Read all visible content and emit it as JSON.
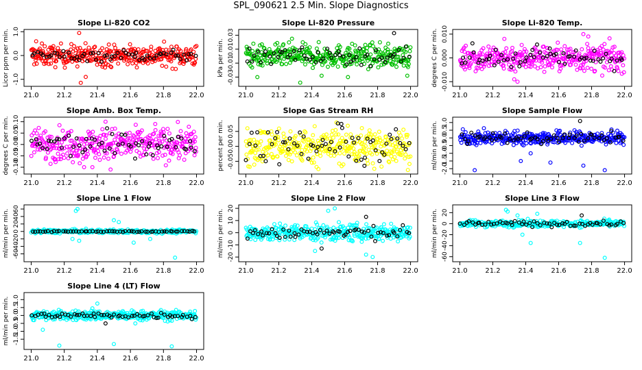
{
  "title": "SPL_090621  2.5 Min. Slope Diagnostics",
  "chart_data": [
    {
      "type": "scatter",
      "title": "Slope Li-820 CO2",
      "ylabel": "Licor ppm per min.",
      "xlim": [
        21.0,
        22.0
      ],
      "ylim": [
        -1.2,
        1.0
      ],
      "yticks": [
        -1.0,
        0.0,
        1.0
      ],
      "ytick_labels": [
        "-1.0",
        "0.0",
        "1.0"
      ],
      "xticks": [
        21.0,
        21.2,
        21.4,
        21.6,
        21.8,
        22.0
      ],
      "xtick_labels": [
        "21.0",
        "21.2",
        "21.4",
        "21.6",
        "21.8",
        "22.0"
      ],
      "series": [
        {
          "color": "#ff0000",
          "count": 360,
          "spread": 0.22,
          "outliers": [
            [
              21.03,
              0.6
            ],
            [
              21.29,
              0.95
            ],
            [
              21.3,
              -1.15
            ],
            [
              21.33,
              -0.9
            ]
          ]
        },
        {
          "color": "#000000",
          "count": 60,
          "spread": 0.12,
          "outliers": []
        }
      ]
    },
    {
      "type": "scatter",
      "title": "Slope Li-820 Pressure",
      "ylabel": "kPa per min.",
      "xlim": [
        21.0,
        22.0
      ],
      "ylim": [
        -0.04,
        0.035
      ],
      "yticks": [
        -0.03,
        -0.01,
        0.01,
        0.03
      ],
      "ytick_labels": [
        "-0.03",
        "-0.01",
        "0.01",
        "0.03"
      ],
      "xticks": [
        21.0,
        21.2,
        21.4,
        21.6,
        21.8,
        22.0
      ],
      "xtick_labels": [
        "21.0",
        "21.2",
        "21.4",
        "21.6",
        "21.8",
        "22.0"
      ],
      "series": [
        {
          "color": "#00c000",
          "count": 360,
          "spread": 0.008,
          "outliers": [
            [
              21.28,
              0.025
            ],
            [
              21.07,
              -0.03
            ],
            [
              21.62,
              -0.03
            ],
            [
              21.98,
              -0.028
            ],
            [
              21.46,
              -0.028
            ],
            [
              21.33,
              -0.038
            ]
          ]
        },
        {
          "color": "#000000",
          "count": 60,
          "spread": 0.006,
          "outliers": [
            [
              21.9,
              0.033
            ]
          ]
        }
      ]
    },
    {
      "type": "scatter",
      "title": "Slope Li-820 Temp.",
      "ylabel": "degrees C per min.",
      "xlim": [
        21.0,
        22.0
      ],
      "ylim": [
        -0.011,
        0.011
      ],
      "yticks": [
        -0.01,
        0.0,
        0.01
      ],
      "ytick_labels": [
        "-0.010",
        "0.000",
        "0.010"
      ],
      "xticks": [
        21.0,
        21.2,
        21.4,
        21.6,
        21.8,
        22.0
      ],
      "xtick_labels": [
        "21.0",
        "21.2",
        "21.4",
        "21.6",
        "21.8",
        "22.0"
      ],
      "series": [
        {
          "color": "#ff00ff",
          "count": 360,
          "spread": 0.0028,
          "outliers": [
            [
              21.33,
              -0.009
            ],
            [
              21.35,
              -0.01
            ],
            [
              21.75,
              0.01
            ],
            [
              21.78,
              0.009
            ],
            [
              21.27,
              0.008
            ]
          ]
        },
        {
          "color": "#000000",
          "count": 60,
          "spread": 0.0022,
          "outliers": []
        }
      ]
    },
    {
      "type": "scatter",
      "title": "Slope Amb. Box Temp.",
      "ylabel": "degrees C per min.",
      "xlim": [
        21.0,
        22.0
      ],
      "ylim": [
        -0.12,
        0.11
      ],
      "yticks": [
        -0.1,
        -0.05,
        0.0,
        0.05,
        0.1
      ],
      "ytick_labels": [
        "-0.10",
        "-0.05",
        "0.00",
        "0.05",
        "0.10"
      ],
      "xticks": [
        21.0,
        21.2,
        21.4,
        21.6,
        21.8,
        22.0
      ],
      "xtick_labels": [
        "21.0",
        "21.2",
        "21.4",
        "21.6",
        "21.8",
        "22.0"
      ],
      "series": [
        {
          "color": "#ff00ff",
          "count": 360,
          "spread": 0.035,
          "outliers": [
            [
              21.45,
              0.1
            ],
            [
              21.48,
              -0.11
            ],
            [
              21.75,
              0.09
            ],
            [
              21.37,
              -0.1
            ],
            [
              21.32,
              -0.1
            ]
          ]
        },
        {
          "color": "#000000",
          "count": 60,
          "spread": 0.025,
          "outliers": []
        }
      ]
    },
    {
      "type": "scatter",
      "title": "Slope Gas Stream RH",
      "ylabel": "percent per min.",
      "xlim": [
        21.0,
        22.0
      ],
      "ylim": [
        -0.085,
        0.09
      ],
      "yticks": [
        -0.05,
        0.0,
        0.05
      ],
      "ytick_labels": [
        "-0.05",
        "0.00",
        "0.05"
      ],
      "xticks": [
        21.0,
        21.2,
        21.4,
        21.6,
        21.8,
        22.0
      ],
      "xtick_labels": [
        "21.0",
        "21.2",
        "21.4",
        "21.6",
        "21.8",
        "22.0"
      ],
      "series": [
        {
          "color": "#ffff00",
          "count": 360,
          "spread": 0.03,
          "outliers": [
            [
              21.55,
              0.08
            ],
            [
              21.78,
              -0.075
            ]
          ]
        },
        {
          "color": "#000000",
          "count": 60,
          "spread": 0.028,
          "outliers": [
            [
              21.58,
              0.075
            ],
            [
              21.72,
              -0.065
            ]
          ]
        }
      ]
    },
    {
      "type": "scatter",
      "title": "Slope Sample Flow",
      "ylabel": "ml/min per min.",
      "xlim": [
        21.0,
        22.0
      ],
      "ylim": [
        -2.2,
        1.2
      ],
      "yticks": [
        -2.0,
        -1.5,
        -1.0,
        -0.5,
        0.0,
        0.5,
        1.0
      ],
      "ytick_labels": [
        "-2.0",
        "-1.5",
        "-1.0",
        "-0.5",
        "0.0",
        "0.5",
        "1.0"
      ],
      "xticks": [
        21.0,
        21.2,
        21.4,
        21.6,
        21.8,
        22.0
      ],
      "xtick_labels": [
        "21.0",
        "21.2",
        "21.4",
        "21.6",
        "21.8",
        "22.0"
      ],
      "series": [
        {
          "color": "#0000ff",
          "count": 360,
          "spread": 0.22,
          "outliers": [
            [
              21.09,
              -2.1
            ],
            [
              21.37,
              -1.5
            ],
            [
              21.55,
              -1.6
            ],
            [
              21.75,
              -1.8
            ],
            [
              21.88,
              -2.1
            ],
            [
              21.43,
              -1.0
            ]
          ]
        },
        {
          "color": "#000000",
          "count": 60,
          "spread": 0.18,
          "outliers": [
            [
              21.73,
              1.1
            ]
          ]
        }
      ]
    },
    {
      "type": "scatter",
      "title": "Slope Line 1 Flow",
      "ylabel": "ml/min per min.",
      "xlim": [
        21.0,
        22.0
      ],
      "ylim": [
        -75,
        65
      ],
      "yticks": [
        -60,
        -40,
        -20,
        0,
        20,
        40,
        60
      ],
      "ytick_labels": [
        "-60",
        "-40",
        "-20",
        "0",
        "20",
        "40",
        "60"
      ],
      "xticks": [
        21.0,
        21.2,
        21.4,
        21.6,
        21.8,
        22.0
      ],
      "xtick_labels": [
        "21.0",
        "21.2",
        "21.4",
        "21.6",
        "21.8",
        "22.0"
      ],
      "series": [
        {
          "color": "#00ffff",
          "count": 300,
          "spread": 2.5,
          "outliers": [
            [
              21.28,
              60
            ],
            [
              21.27,
              55
            ],
            [
              21.53,
              25
            ],
            [
              21.25,
              -20
            ],
            [
              21.62,
              -30
            ],
            [
              21.72,
              -20
            ],
            [
              21.87,
              -70
            ],
            [
              21.5,
              30
            ],
            [
              21.29,
              -25
            ]
          ]
        },
        {
          "color": "#000000",
          "count": 60,
          "spread": 0.6,
          "outliers": []
        }
      ]
    },
    {
      "type": "scatter",
      "title": "Slope Line 2 Flow",
      "ylabel": "ml/min per min.",
      "xlim": [
        21.0,
        22.0
      ],
      "ylim": [
        -22,
        21
      ],
      "yticks": [
        -20,
        -10,
        0,
        10,
        20
      ],
      "ytick_labels": [
        "-20",
        "-10",
        "0",
        "10",
        "20"
      ],
      "xticks": [
        21.0,
        21.2,
        21.4,
        21.6,
        21.8,
        22.0
      ],
      "xtick_labels": [
        "21.0",
        "21.2",
        "21.4",
        "21.6",
        "21.8",
        "22.0"
      ],
      "series": [
        {
          "color": "#00ffff",
          "count": 360,
          "spread": 3.5,
          "outliers": [
            [
              21.42,
              -15
            ],
            [
              21.5,
              18
            ],
            [
              21.54,
              20
            ],
            [
              21.77,
              -20
            ],
            [
              21.73,
              -18
            ]
          ]
        },
        {
          "color": "#000000",
          "count": 60,
          "spread": 2.5,
          "outliers": [
            [
              21.73,
              13
            ],
            [
              21.46,
              -13
            ]
          ]
        }
      ]
    },
    {
      "type": "scatter",
      "title": "Slope Line 3 Flow",
      "ylabel": "ml/min per min.",
      "xlim": [
        21.0,
        22.0
      ],
      "ylim": [
        -65,
        30
      ],
      "yticks": [
        -60,
        -40,
        -20,
        0,
        20
      ],
      "ytick_labels": [
        "-60",
        "-40",
        "-20",
        "0",
        "20"
      ],
      "xticks": [
        21.0,
        21.2,
        21.4,
        21.6,
        21.8,
        22.0
      ],
      "xtick_labels": [
        "21.0",
        "21.2",
        "21.4",
        "21.6",
        "21.8",
        "22.0"
      ],
      "series": [
        {
          "color": "#00ffff",
          "count": 320,
          "spread": 3.0,
          "outliers": [
            [
              21.28,
              25
            ],
            [
              21.29,
              22
            ],
            [
              21.43,
              -35
            ],
            [
              21.47,
              18
            ],
            [
              21.73,
              -35
            ],
            [
              21.88,
              -62
            ],
            [
              21.35,
              15
            ],
            [
              21.38,
              -20
            ]
          ]
        },
        {
          "color": "#000000",
          "count": 60,
          "spread": 2.5,
          "outliers": [
            [
              21.74,
              15
            ]
          ]
        }
      ]
    },
    {
      "type": "scatter",
      "title": "Slope Line 4 (LT) Flow",
      "ylabel": "ml/min per min.",
      "xlim": [
        21.0,
        22.0
      ],
      "ylim": [
        -2.0,
        1.3
      ],
      "yticks": [
        -1.5,
        -1.0,
        -0.5,
        0.0,
        0.5,
        1.0
      ],
      "ytick_labels": [
        "-1.5",
        "-1.0",
        "-0.5",
        "0.0",
        "0.5",
        "1.0"
      ],
      "xticks": [
        21.0,
        21.2,
        21.4,
        21.6,
        21.8,
        22.0
      ],
      "xtick_labels": [
        "21.0",
        "21.2",
        "21.4",
        "21.6",
        "21.8",
        "22.0"
      ],
      "series": [
        {
          "color": "#00ffff",
          "count": 360,
          "spread": 0.15,
          "outliers": [
            [
              21.17,
              -1.9
            ],
            [
              21.5,
              -1.8
            ],
            [
              21.85,
              -1.95
            ],
            [
              21.4,
              0.75
            ],
            [
              21.37,
              0.45
            ],
            [
              21.63,
              -0.5
            ],
            [
              21.07,
              -0.9
            ]
          ]
        },
        {
          "color": "#000000",
          "count": 60,
          "spread": 0.1,
          "outliers": [
            [
              21.45,
              -0.5
            ]
          ]
        }
      ]
    }
  ]
}
